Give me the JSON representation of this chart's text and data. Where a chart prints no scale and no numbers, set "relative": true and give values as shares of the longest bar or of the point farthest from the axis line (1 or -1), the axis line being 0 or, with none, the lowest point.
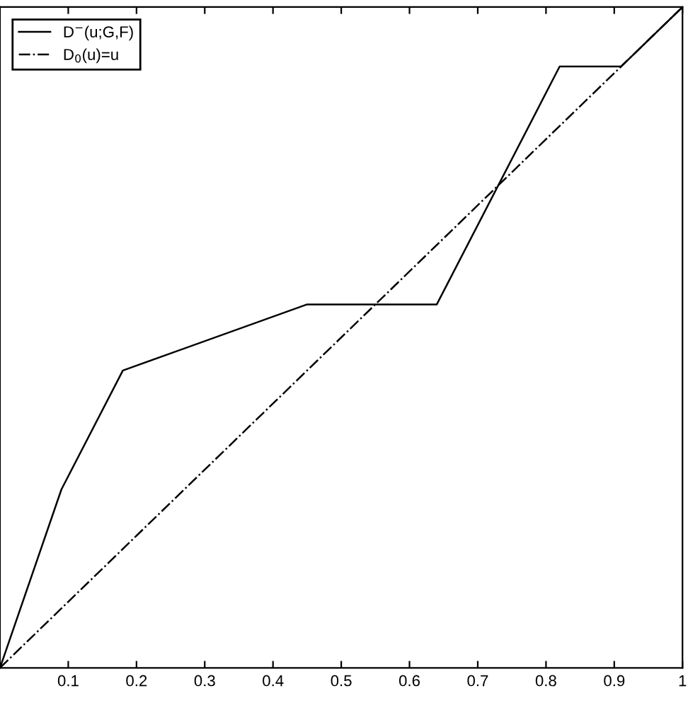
{
  "chart_data": {
    "type": "line",
    "relative": true,
    "tick_labels": "x",
    "legend": "top left",
    "grid": false,
    "xlim": [
      0,
      1
    ],
    "xticks": [
      0.1,
      0.2,
      0.3,
      0.4,
      0.5,
      0.6,
      0.7,
      0.8,
      0.9,
      1
    ],
    "series": [
      {
        "name": "D$^{−}$(u;G,F)",
        "color": "#000000",
        "line_style": "solid",
        "x": [
          0,
          0.09,
          0.18,
          0.45,
          0.64,
          0.82,
          0.91,
          1
        ],
        "values": [
          0,
          0.27,
          0.45,
          0.55,
          0.55,
          0.91,
          0.91,
          1
        ]
      },
      {
        "name": "D$_{0}$(u)=u",
        "color": "#000000",
        "line_style": "dashdot",
        "x": [
          0,
          1
        ],
        "values": [
          0,
          1
        ]
      }
    ]
  }
}
